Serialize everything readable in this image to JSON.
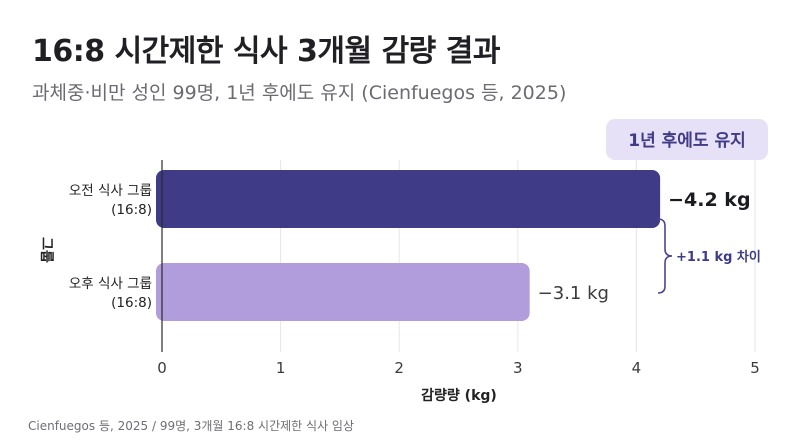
{
  "header": {
    "title": "16:8 시간제한 식사 3개월 감량 결과",
    "subtitle": "과체중·비만 성인 99명, 1년 후에도 유지 (Cienfuegos 등, 2025)"
  },
  "footer": {
    "source": "Cienfuegos 등, 2025 / 99명, 3개월 16:8 시간제한 식사 임상"
  },
  "chart_data": {
    "type": "bar",
    "orientation": "horizontal",
    "categories": [
      "오전 식사 그룹\n(16:8)",
      "오후 식사 그룹\n(16:8)"
    ],
    "values": [
      4.2,
      3.1
    ],
    "value_labels": [
      "−4.2 kg",
      "−3.1 kg"
    ],
    "xlabel": "감량량 (kg)",
    "ylabel": "그룹",
    "xlim": [
      0,
      5
    ],
    "xticks": [
      0,
      1,
      2,
      3,
      4,
      5
    ],
    "grid": true,
    "colors": [
      "#3f3b87",
      "#b19ddb"
    ],
    "badge": "1년 후에도 유지",
    "difference_annotation": "+1.1 kg 차이"
  }
}
